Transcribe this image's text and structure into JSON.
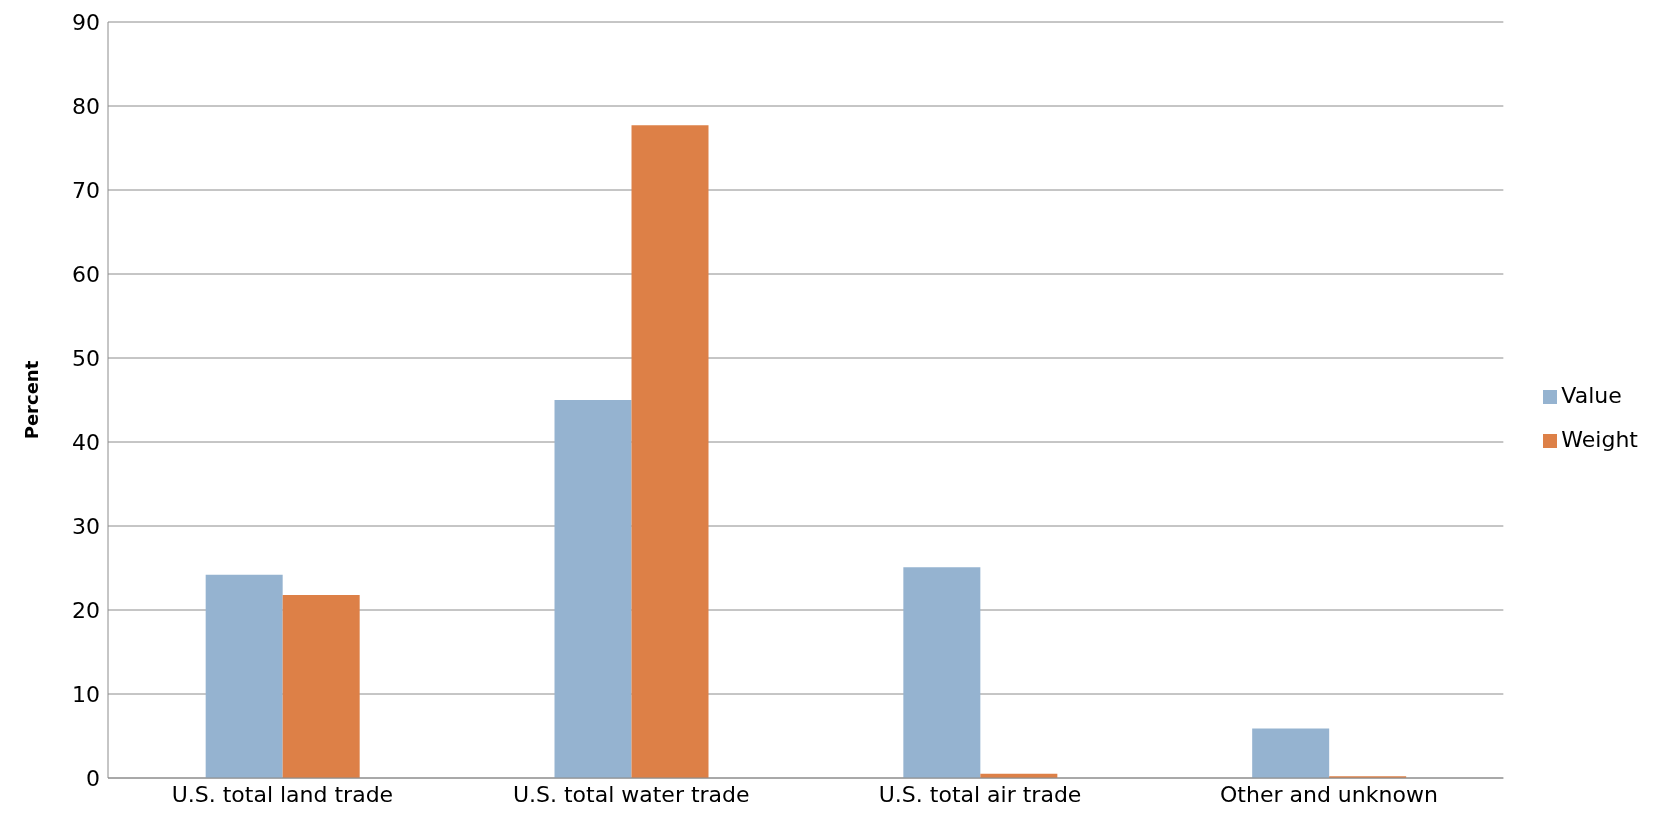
{
  "chart_data": {
    "type": "bar",
    "ylabel": "Percent",
    "categories": [
      "U.S. total land trade",
      "U.S. total water trade",
      "U.S. total air trade",
      "Other and unknown"
    ],
    "series": [
      {
        "name": "Value",
        "color": "#95b3d0",
        "values": [
          24.2,
          45,
          25.1,
          5.9
        ]
      },
      {
        "name": "Weight",
        "color": "#dd8047",
        "values": [
          21.8,
          77.7,
          0.5,
          0.2
        ]
      }
    ],
    "ylim": [
      0,
      90
    ],
    "yticks": [
      0,
      10,
      20,
      30,
      40,
      50,
      60,
      70,
      80,
      90
    ],
    "grid": "y",
    "legend": "right"
  }
}
